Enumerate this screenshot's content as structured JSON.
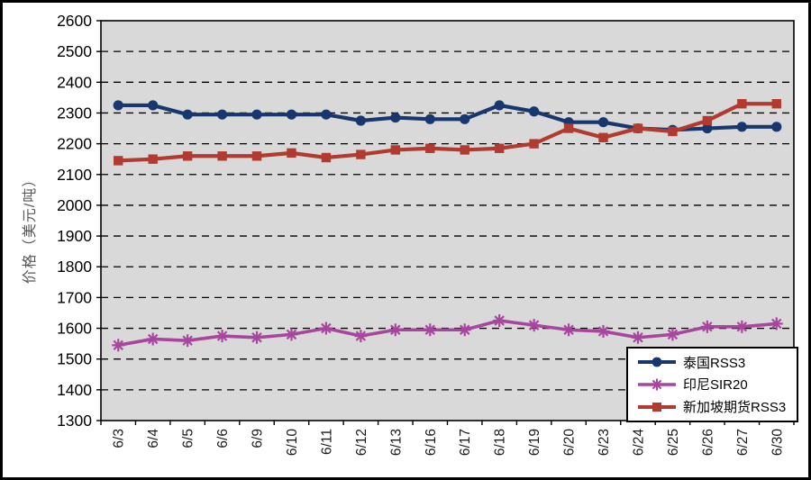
{
  "chart": {
    "plot_bg": "#D9D9D9",
    "grid_color": "#000000",
    "outer_border_color": "#000000",
    "y_axis_title": "价格（美元/吨）"
  },
  "chart_data": {
    "type": "line",
    "ylabel": "价格（美元/吨）",
    "xlabel": "",
    "ylim": [
      1300,
      2600
    ],
    "yticks": [
      1300,
      1400,
      1500,
      1600,
      1700,
      1800,
      1900,
      2000,
      2100,
      2200,
      2300,
      2400,
      2500,
      2600
    ],
    "grid": "dashed-horizontal",
    "legend_position": "inside-bottom-right",
    "categories": [
      "6/3",
      "6/4",
      "6/5",
      "6/6",
      "6/9",
      "6/10",
      "6/11",
      "6/12",
      "6/13",
      "6/16",
      "6/17",
      "6/18",
      "6/19",
      "6/20",
      "6/23",
      "6/24",
      "6/25",
      "6/26",
      "6/27",
      "6/30"
    ],
    "series": [
      {
        "name": "泰国RSS3",
        "color": "#17376E",
        "marker": "circle",
        "values": [
          2325,
          2325,
          2295,
          2295,
          2295,
          2295,
          2295,
          2275,
          2285,
          2280,
          2280,
          2325,
          2305,
          2270,
          2270,
          2250,
          2245,
          2250,
          2255,
          2255
        ]
      },
      {
        "name": "印尼SIR20",
        "color": "#A8469F",
        "marker": "asterisk",
        "values": [
          1545,
          1565,
          1560,
          1575,
          1570,
          1580,
          1600,
          1575,
          1595,
          1595,
          1595,
          1625,
          1610,
          1595,
          1590,
          1570,
          1580,
          1605,
          1605,
          1615
        ]
      },
      {
        "name": "新加坡期货RSS3",
        "color": "#B13B30",
        "marker": "square",
        "values": [
          2145,
          2150,
          2160,
          2160,
          2160,
          2170,
          2155,
          2165,
          2180,
          2185,
          2180,
          2185,
          2200,
          2250,
          2220,
          2250,
          2240,
          2275,
          2330,
          2330
        ]
      }
    ]
  }
}
